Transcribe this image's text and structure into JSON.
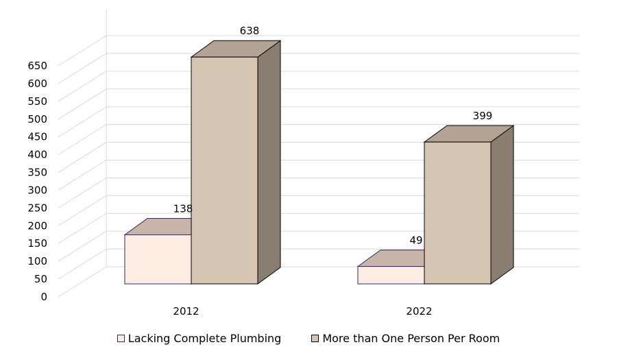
{
  "chart_data": {
    "type": "bar",
    "categories": [
      "2012",
      "2022"
    ],
    "series": [
      {
        "name": "Lacking Complete Plumbing",
        "values": [
          138,
          49
        ],
        "color": "#fdece2",
        "edge": "#2b2b6e"
      },
      {
        "name": "More than One Person Per Room",
        "values": [
          638,
          399
        ],
        "color": "#d6c5b3",
        "edge": "#000000"
      }
    ],
    "y_ticks": [
      0,
      50,
      100,
      150,
      200,
      250,
      300,
      350,
      400,
      450,
      500,
      550,
      600,
      650
    ],
    "ylim": [
      0,
      650
    ],
    "data_labels": [
      "138",
      "638",
      "49",
      "399"
    ],
    "grid": true,
    "legend_position": "bottom",
    "style": "3d-column",
    "title": "",
    "xlabel": "",
    "ylabel": ""
  },
  "legend": {
    "items": [
      {
        "label": "Lacking Complete Plumbing",
        "color": "#fdece2",
        "edge": "#2b2b6e"
      },
      {
        "label": "More than One Person Per Room",
        "color": "#d6c5b3",
        "edge": "#000000"
      }
    ]
  }
}
